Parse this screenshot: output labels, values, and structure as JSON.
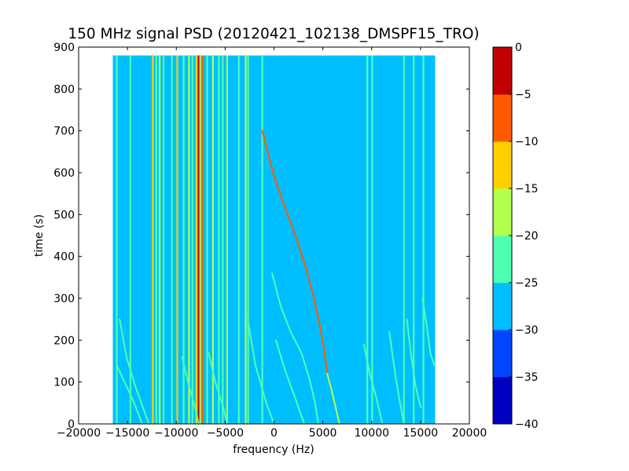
{
  "chart_data": {
    "type": "heatmap",
    "title": "150 MHz signal PSD (20120421_102138_DMSPF15_TRO)",
    "xlabel": "frequency (Hz)",
    "ylabel": "time (s)",
    "xlim": [
      -20000,
      20000
    ],
    "ylim": [
      0,
      900
    ],
    "xticks": [
      -20000,
      -15000,
      -10000,
      -5000,
      0,
      5000,
      10000,
      15000,
      20000
    ],
    "xtick_labels": [
      "−20000",
      "−15000",
      "−10000",
      "−5000",
      "0",
      "5000",
      "10000",
      "15000",
      "20000"
    ],
    "yticks": [
      0,
      100,
      200,
      300,
      400,
      500,
      600,
      700,
      800,
      900
    ],
    "ytick_labels": [
      "0",
      "100",
      "200",
      "300",
      "400",
      "500",
      "600",
      "700",
      "800",
      "900"
    ],
    "data_extent": {
      "freq": [
        -16500,
        16500
      ],
      "time": [
        0,
        880
      ]
    },
    "background_level": -27.5,
    "colorbar": {
      "levels": [
        -40,
        -35,
        -30,
        -25,
        -20,
        -15,
        -10,
        -5,
        0
      ],
      "tick_labels": [
        "−40",
        "−35",
        "−30",
        "−25",
        "−20",
        "−15",
        "−10",
        "−5",
        "0"
      ],
      "colors": [
        "#0000c0",
        "#0046ff",
        "#00beff",
        "#4dffb3",
        "#b3ff4d",
        "#ffd000",
        "#ff5a00",
        "#c00000"
      ]
    },
    "vertical_lines": [
      {
        "freq": -16100,
        "level": -22
      },
      {
        "freq": -15600,
        "level": -27
      },
      {
        "freq": -14700,
        "level": -22
      },
      {
        "freq": -13900,
        "level": -27
      },
      {
        "freq": -12400,
        "level": -12
      },
      {
        "freq": -12050,
        "level": -22
      },
      {
        "freq": -11700,
        "level": -17
      },
      {
        "freq": -11300,
        "level": -22
      },
      {
        "freq": -10450,
        "level": -22
      },
      {
        "freq": -9900,
        "level": -12
      },
      {
        "freq": -9250,
        "level": -22
      },
      {
        "freq": -8700,
        "level": -17
      },
      {
        "freq": -8350,
        "level": -22
      },
      {
        "freq": -7950,
        "level": -12
      },
      {
        "freq": -7700,
        "level": -2
      },
      {
        "freq": -7550,
        "level": -17
      },
      {
        "freq": -7350,
        "level": -7
      },
      {
        "freq": -6850,
        "level": -22
      },
      {
        "freq": -6250,
        "level": -17
      },
      {
        "freq": -5650,
        "level": -22
      },
      {
        "freq": -5250,
        "level": -22
      },
      {
        "freq": -4800,
        "level": -17
      },
      {
        "freq": -3600,
        "level": -22
      },
      {
        "freq": -2900,
        "level": -17
      },
      {
        "freq": -2650,
        "level": -22
      },
      {
        "freq": -1200,
        "level": -22
      },
      {
        "freq": 200,
        "level": -27
      },
      {
        "freq": 2100,
        "level": -27
      },
      {
        "freq": 9550,
        "level": -22
      },
      {
        "freq": 10050,
        "level": -22
      },
      {
        "freq": 10600,
        "level": -27
      },
      {
        "freq": 12050,
        "level": -27
      },
      {
        "freq": 13300,
        "level": -22
      },
      {
        "freq": 14300,
        "level": -22
      },
      {
        "freq": 14750,
        "level": -27
      },
      {
        "freq": 15300,
        "level": -22
      },
      {
        "freq": 15650,
        "level": -27
      }
    ],
    "traces": [
      {
        "level": -7,
        "points": [
          [
            -1200,
            700
          ],
          [
            -100,
            600
          ],
          [
            900,
            530
          ],
          [
            2200,
            450
          ],
          [
            3300,
            370
          ],
          [
            4100,
            300
          ],
          [
            4650,
            240
          ],
          [
            5100,
            180
          ],
          [
            5450,
            120
          ]
        ]
      },
      {
        "level": -17,
        "points": [
          [
            5450,
            120
          ],
          [
            5900,
            80
          ],
          [
            6300,
            40
          ],
          [
            6700,
            0
          ]
        ]
      },
      {
        "level": -22,
        "points": [
          [
            -16100,
            140
          ],
          [
            -15300,
            100
          ],
          [
            -14400,
            55
          ],
          [
            -13500,
            0
          ]
        ]
      },
      {
        "level": -22,
        "points": [
          [
            -15800,
            250
          ],
          [
            -15100,
            160
          ],
          [
            -14200,
            90
          ],
          [
            -13200,
            25
          ],
          [
            -12800,
            0
          ]
        ]
      },
      {
        "level": -22,
        "points": [
          [
            -9400,
            160
          ],
          [
            -8800,
            100
          ],
          [
            -8100,
            40
          ],
          [
            -7700,
            0
          ]
        ]
      },
      {
        "level": -22,
        "points": [
          [
            -6700,
            170
          ],
          [
            -6000,
            100
          ],
          [
            -5200,
            40
          ],
          [
            -4800,
            0
          ]
        ]
      },
      {
        "level": -22,
        "points": [
          [
            -2700,
            250
          ],
          [
            -1900,
            140
          ],
          [
            -800,
            50
          ],
          [
            0,
            0
          ]
        ]
      },
      {
        "level": -22,
        "points": [
          [
            -200,
            360
          ],
          [
            700,
            280
          ],
          [
            1700,
            220
          ],
          [
            2800,
            170
          ],
          [
            3600,
            110
          ],
          [
            4200,
            50
          ],
          [
            4550,
            0
          ]
        ]
      },
      {
        "level": -22,
        "points": [
          [
            200,
            200
          ],
          [
            1100,
            130
          ],
          [
            2200,
            60
          ],
          [
            3100,
            0
          ]
        ]
      },
      {
        "level": -22,
        "points": [
          [
            9200,
            190
          ],
          [
            9800,
            120
          ],
          [
            10500,
            60
          ],
          [
            11100,
            0
          ]
        ]
      },
      {
        "level": -22,
        "points": [
          [
            11800,
            220
          ],
          [
            12400,
            120
          ],
          [
            12900,
            50
          ],
          [
            13300,
            0
          ]
        ]
      },
      {
        "level": -22,
        "points": [
          [
            13600,
            250
          ],
          [
            14000,
            170
          ],
          [
            14500,
            90
          ],
          [
            15000,
            40
          ]
        ]
      },
      {
        "level": -22,
        "points": [
          [
            15200,
            300
          ],
          [
            15600,
            240
          ],
          [
            16000,
            170
          ],
          [
            16400,
            140
          ]
        ]
      }
    ]
  }
}
